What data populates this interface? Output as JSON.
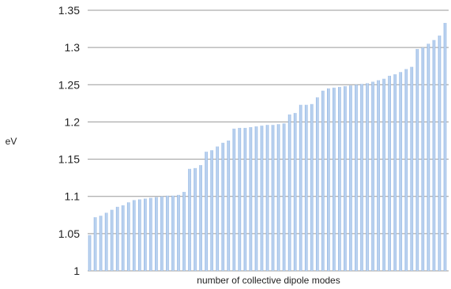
{
  "chart_data": {
    "type": "bar",
    "title": "",
    "xlabel": "number of collective dipole modes",
    "ylabel": "eV",
    "ylim": [
      1,
      1.35
    ],
    "yticks": [
      "1",
      "1.05",
      "1.1",
      "1.15",
      "1.2",
      "1.25",
      "1.3",
      "1.35"
    ],
    "grid": true,
    "legend": "none",
    "bar_color": "#8fb4e3",
    "bar_highlight": "#c9dcf3",
    "grid_color": "#9a9a9a",
    "values": [
      1.048,
      1.072,
      1.074,
      1.078,
      1.082,
      1.086,
      1.088,
      1.092,
      1.095,
      1.096,
      1.097,
      1.098,
      1.099,
      1.1,
      1.101,
      1.101,
      1.102,
      1.106,
      1.137,
      1.138,
      1.142,
      1.16,
      1.162,
      1.167,
      1.172,
      1.175,
      1.191,
      1.192,
      1.192,
      1.193,
      1.194,
      1.195,
      1.196,
      1.196,
      1.197,
      1.198,
      1.21,
      1.212,
      1.223,
      1.223,
      1.224,
      1.233,
      1.242,
      1.245,
      1.246,
      1.247,
      1.248,
      1.249,
      1.25,
      1.251,
      1.252,
      1.254,
      1.256,
      1.258,
      1.262,
      1.264,
      1.267,
      1.271,
      1.274,
      1.298,
      1.3,
      1.305,
      1.31,
      1.316,
      1.333
    ]
  }
}
